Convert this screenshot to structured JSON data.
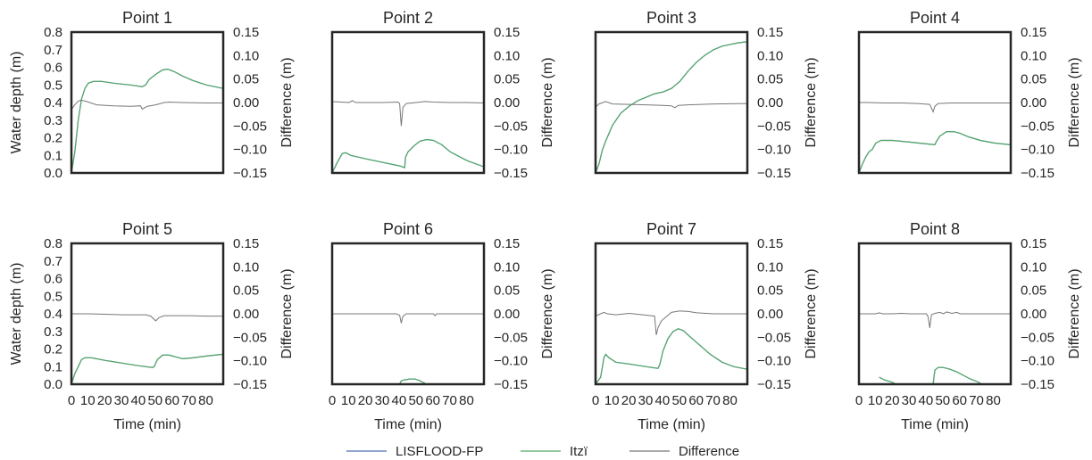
{
  "colors": {
    "lisflood": "#4c72b0",
    "itzi": "#55a868",
    "difference": "#777777",
    "frame": "#262626"
  },
  "legend": [
    {
      "key": "lisflood",
      "label": "LISFLOOD-FP"
    },
    {
      "key": "itzi",
      "label": "Itzï"
    },
    {
      "key": "difference",
      "label": "Difference"
    }
  ],
  "chart_data": {
    "type": "line",
    "xlabel": "Time (min)",
    "ylabel_left": "Water depth (m)",
    "ylabel_right": "Difference (m)",
    "xlim": [
      0,
      90
    ],
    "xticks": [
      0,
      10,
      20,
      30,
      40,
      50,
      60,
      70,
      80
    ],
    "xtick_labels": [
      "0",
      "10",
      "20",
      "30",
      "40",
      "50",
      "60",
      "70",
      "80"
    ],
    "ylim_left": [
      0,
      0.8
    ],
    "yticks_left": [
      "0.0",
      "0.1",
      "0.2",
      "0.3",
      "0.4",
      "0.5",
      "0.6",
      "0.7",
      "0.8"
    ],
    "ylim_right": [
      -0.15,
      0.15
    ],
    "yticks_right": [
      "−0.15",
      "−0.10",
      "−0.05",
      "0.00",
      "0.05",
      "0.10",
      "0.15"
    ],
    "panels": [
      {
        "title": "Point 1",
        "depth": [
          [
            0,
            0
          ],
          [
            2,
            0.12
          ],
          [
            4,
            0.3
          ],
          [
            6,
            0.42
          ],
          [
            8,
            0.48
          ],
          [
            10,
            0.51
          ],
          [
            13,
            0.52
          ],
          [
            18,
            0.52
          ],
          [
            25,
            0.51
          ],
          [
            35,
            0.5
          ],
          [
            42,
            0.49
          ],
          [
            44,
            0.5
          ],
          [
            46,
            0.53
          ],
          [
            50,
            0.56
          ],
          [
            54,
            0.585
          ],
          [
            57,
            0.59
          ],
          [
            61,
            0.575
          ],
          [
            66,
            0.55
          ],
          [
            72,
            0.525
          ],
          [
            80,
            0.5
          ],
          [
            90,
            0.48
          ]
        ],
        "diff": [
          [
            0,
            -0.015
          ],
          [
            2,
            -0.005
          ],
          [
            4,
            0.003
          ],
          [
            6,
            0.005
          ],
          [
            9,
            0.002
          ],
          [
            15,
            -0.005
          ],
          [
            25,
            -0.007
          ],
          [
            35,
            -0.008
          ],
          [
            41,
            -0.007
          ],
          [
            42,
            -0.014
          ],
          [
            43,
            -0.012
          ],
          [
            45,
            -0.008
          ],
          [
            50,
            -0.005
          ],
          [
            55,
            0.0
          ],
          [
            58,
            0.001
          ],
          [
            65,
            0.0
          ],
          [
            80,
            -0.001
          ],
          [
            90,
            -0.001
          ]
        ]
      },
      {
        "title": "Point 2",
        "depth": [
          [
            0,
            0
          ],
          [
            3,
            0.06
          ],
          [
            6,
            0.11
          ],
          [
            8,
            0.115
          ],
          [
            11,
            0.1
          ],
          [
            20,
            0.08
          ],
          [
            30,
            0.06
          ],
          [
            40,
            0.04
          ],
          [
            43,
            0.03
          ],
          [
            43.5,
            0.09
          ],
          [
            45,
            0.12
          ],
          [
            48,
            0.15
          ],
          [
            52,
            0.18
          ],
          [
            56,
            0.19
          ],
          [
            60,
            0.185
          ],
          [
            65,
            0.16
          ],
          [
            70,
            0.12
          ],
          [
            80,
            0.07
          ],
          [
            90,
            0.035
          ]
        ],
        "diff": [
          [
            0,
            0.002
          ],
          [
            5,
            0.001
          ],
          [
            10,
            0.0
          ],
          [
            12,
            0.004
          ],
          [
            14,
            0.0
          ],
          [
            20,
            0.0
          ],
          [
            30,
            0.0
          ],
          [
            39,
            0.001
          ],
          [
            40,
            -0.002
          ],
          [
            41,
            -0.05
          ],
          [
            42,
            -0.01
          ],
          [
            44,
            -0.002
          ],
          [
            50,
            0.0
          ],
          [
            55,
            0.002
          ],
          [
            60,
            0.001
          ],
          [
            70,
            0.0
          ],
          [
            80,
            0.0
          ],
          [
            90,
            -0.001
          ]
        ]
      },
      {
        "title": "Point 3",
        "depth": [
          [
            0,
            0
          ],
          [
            2,
            0.05
          ],
          [
            4,
            0.13
          ],
          [
            6,
            0.18
          ],
          [
            10,
            0.27
          ],
          [
            15,
            0.34
          ],
          [
            20,
            0.38
          ],
          [
            25,
            0.41
          ],
          [
            30,
            0.43
          ],
          [
            35,
            0.45
          ],
          [
            40,
            0.46
          ],
          [
            45,
            0.48
          ],
          [
            50,
            0.52
          ],
          [
            55,
            0.58
          ],
          [
            60,
            0.63
          ],
          [
            65,
            0.67
          ],
          [
            70,
            0.7
          ],
          [
            75,
            0.72
          ],
          [
            80,
            0.73
          ],
          [
            85,
            0.74
          ],
          [
            90,
            0.745
          ]
        ],
        "diff": [
          [
            0,
            -0.01
          ],
          [
            2,
            -0.003
          ],
          [
            6,
            0.002
          ],
          [
            10,
            -0.003
          ],
          [
            20,
            -0.004
          ],
          [
            30,
            -0.005
          ],
          [
            40,
            -0.006
          ],
          [
            45,
            -0.007
          ],
          [
            47,
            -0.011
          ],
          [
            49,
            -0.006
          ],
          [
            55,
            -0.005
          ],
          [
            70,
            -0.003
          ],
          [
            90,
            -0.002
          ]
        ]
      },
      {
        "title": "Point 4",
        "depth": [
          [
            0,
            0
          ],
          [
            2,
            0.05
          ],
          [
            4,
            0.09
          ],
          [
            6,
            0.12
          ],
          [
            8,
            0.135
          ],
          [
            10,
            0.17
          ],
          [
            13,
            0.185
          ],
          [
            20,
            0.185
          ],
          [
            30,
            0.175
          ],
          [
            40,
            0.165
          ],
          [
            45,
            0.16
          ],
          [
            46,
            0.18
          ],
          [
            48,
            0.21
          ],
          [
            52,
            0.235
          ],
          [
            56,
            0.235
          ],
          [
            60,
            0.225
          ],
          [
            65,
            0.205
          ],
          [
            72,
            0.185
          ],
          [
            80,
            0.17
          ],
          [
            90,
            0.16
          ]
        ],
        "diff": [
          [
            0,
            0.0
          ],
          [
            5,
            0.0
          ],
          [
            15,
            -0.001
          ],
          [
            25,
            -0.001
          ],
          [
            35,
            -0.002
          ],
          [
            42,
            -0.004
          ],
          [
            44,
            -0.02
          ],
          [
            45,
            -0.008
          ],
          [
            47,
            -0.002
          ],
          [
            55,
            -0.001
          ],
          [
            70,
            -0.001
          ],
          [
            90,
            -0.001
          ]
        ]
      },
      {
        "title": "Point 5",
        "depth": [
          [
            0,
            0
          ],
          [
            2,
            0.06
          ],
          [
            4,
            0.1
          ],
          [
            6,
            0.14
          ],
          [
            8,
            0.15
          ],
          [
            12,
            0.15
          ],
          [
            20,
            0.135
          ],
          [
            30,
            0.12
          ],
          [
            40,
            0.105
          ],
          [
            48,
            0.095
          ],
          [
            49,
            0.1
          ],
          [
            51,
            0.14
          ],
          [
            54,
            0.165
          ],
          [
            58,
            0.165
          ],
          [
            62,
            0.155
          ],
          [
            66,
            0.145
          ],
          [
            72,
            0.15
          ],
          [
            80,
            0.16
          ],
          [
            90,
            0.17
          ]
        ],
        "diff": [
          [
            0,
            0.0
          ],
          [
            10,
            0.0
          ],
          [
            20,
            -0.001
          ],
          [
            30,
            -0.002
          ],
          [
            44,
            -0.002
          ],
          [
            47,
            -0.005
          ],
          [
            50,
            -0.015
          ],
          [
            52,
            -0.008
          ],
          [
            55,
            -0.004
          ],
          [
            60,
            -0.004
          ],
          [
            70,
            -0.004
          ],
          [
            80,
            -0.005
          ],
          [
            90,
            -0.005
          ]
        ]
      },
      {
        "title": "Point 6",
        "depth": [
          [
            40,
            0
          ],
          [
            41,
            0.02
          ],
          [
            43,
            0.025
          ],
          [
            46,
            0.03
          ],
          [
            49,
            0.03
          ],
          [
            52,
            0.02
          ],
          [
            55,
            0.005
          ],
          [
            56,
            0
          ]
        ],
        "diff": [
          [
            0,
            0.0
          ],
          [
            20,
            0.0
          ],
          [
            38,
            0.0
          ],
          [
            40,
            -0.003
          ],
          [
            41,
            -0.02
          ],
          [
            42,
            -0.005
          ],
          [
            44,
            0.0
          ],
          [
            60,
            0.0
          ],
          [
            61,
            -0.004
          ],
          [
            62,
            0.0
          ],
          [
            90,
            0.0
          ]
        ]
      },
      {
        "title": "Point 7",
        "depth": [
          [
            0,
            0
          ],
          [
            3,
            0.04
          ],
          [
            5,
            0.15
          ],
          [
            6,
            0.17
          ],
          [
            8,
            0.15
          ],
          [
            12,
            0.125
          ],
          [
            20,
            0.115
          ],
          [
            30,
            0.1
          ],
          [
            37,
            0.09
          ],
          [
            38,
            0.11
          ],
          [
            40,
            0.19
          ],
          [
            43,
            0.26
          ],
          [
            46,
            0.3
          ],
          [
            49,
            0.315
          ],
          [
            52,
            0.305
          ],
          [
            56,
            0.27
          ],
          [
            62,
            0.22
          ],
          [
            68,
            0.17
          ],
          [
            75,
            0.125
          ],
          [
            82,
            0.1
          ],
          [
            90,
            0.085
          ]
        ],
        "diff": [
          [
            0,
            -0.005
          ],
          [
            3,
            0.0
          ],
          [
            5,
            0.003
          ],
          [
            7,
            0.0
          ],
          [
            12,
            -0.002
          ],
          [
            20,
            0.001
          ],
          [
            28,
            -0.002
          ],
          [
            33,
            -0.004
          ],
          [
            35,
            -0.005
          ],
          [
            36,
            -0.045
          ],
          [
            37,
            -0.03
          ],
          [
            39,
            -0.015
          ],
          [
            42,
            -0.006
          ],
          [
            45,
            0.003
          ],
          [
            50,
            0.006
          ],
          [
            55,
            0.005
          ],
          [
            60,
            0.002
          ],
          [
            70,
            0.0
          ],
          [
            80,
            0.0
          ],
          [
            90,
            0.0
          ]
        ]
      },
      {
        "title": "Point 8",
        "depth": [
          [
            12,
            0.04
          ],
          [
            15,
            0.025
          ],
          [
            20,
            0.01
          ],
          [
            22,
            0
          ],
          [
            44,
            0
          ],
          [
            45,
            0.08
          ],
          [
            47,
            0.095
          ],
          [
            50,
            0.095
          ],
          [
            54,
            0.085
          ],
          [
            58,
            0.07
          ],
          [
            62,
            0.05
          ],
          [
            66,
            0.03
          ],
          [
            70,
            0.015
          ],
          [
            73,
            0
          ]
        ],
        "diff": [
          [
            0,
            0.0
          ],
          [
            10,
            0.0
          ],
          [
            12,
            0.002
          ],
          [
            14,
            0.0
          ],
          [
            20,
            0.0
          ],
          [
            25,
            0.001
          ],
          [
            30,
            0.0
          ],
          [
            40,
            0.0
          ],
          [
            41,
            -0.006
          ],
          [
            42,
            -0.03
          ],
          [
            43,
            -0.002
          ],
          [
            45,
            0.001
          ],
          [
            48,
            0.003
          ],
          [
            50,
            0.0
          ],
          [
            52,
            0.004
          ],
          [
            55,
            0.001
          ],
          [
            58,
            0.003
          ],
          [
            60,
            0.0
          ],
          [
            90,
            0.0
          ]
        ]
      }
    ]
  }
}
